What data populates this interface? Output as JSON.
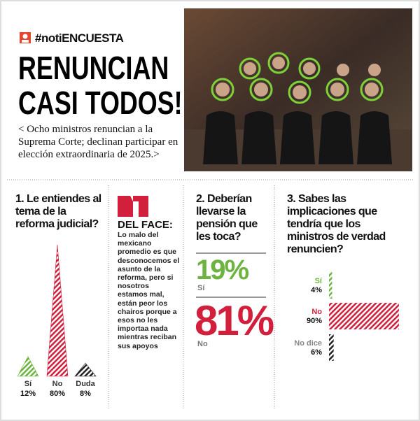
{
  "header": {
    "hashtag": "#notiENCUESTA",
    "title_lines": [
      "RENUNCIAN",
      "CASI TODOS!"
    ],
    "subtitle": "< Ocho ministros renuncian a la Suprema Corte; declinan participar en elección extraordinaria de 2025.>"
  },
  "del_face": {
    "title": "DEL FACE:",
    "body": "Lo malo del mexicano promedio es que desconocemos el asunto de la reforma, pero si nosotros estamos mal, están peor los chairos porque a esos no les importaa nada mientras reciban sus apoyos"
  },
  "poll2": {
    "question": "2. Deberían llevarse la pensión que les toca?",
    "answers": [
      {
        "value": "19%",
        "label": "Sí"
      },
      {
        "value": "81%",
        "label": "No"
      }
    ]
  },
  "chart_data": [
    {
      "type": "peak",
      "title": "1. Le entiendes al tema de la reforma judicial?",
      "categories": [
        "Sí",
        "No",
        "Duda"
      ],
      "values": [
        12,
        80,
        8
      ],
      "value_labels": [
        "12%",
        "80%",
        "8%"
      ],
      "colors": [
        "#6cb33f",
        "#d21f3c",
        "#222222"
      ]
    },
    {
      "type": "hbar",
      "title": "3. Sabes las implicaciones que tendría que los ministros de verdad renuncien?",
      "categories": [
        "Sí",
        "No",
        "No dice"
      ],
      "values": [
        4,
        90,
        6
      ],
      "value_labels": [
        "4%",
        "90%",
        "6%"
      ],
      "colors": [
        "#6cb33f",
        "#d21f3c",
        "#222222"
      ]
    }
  ]
}
